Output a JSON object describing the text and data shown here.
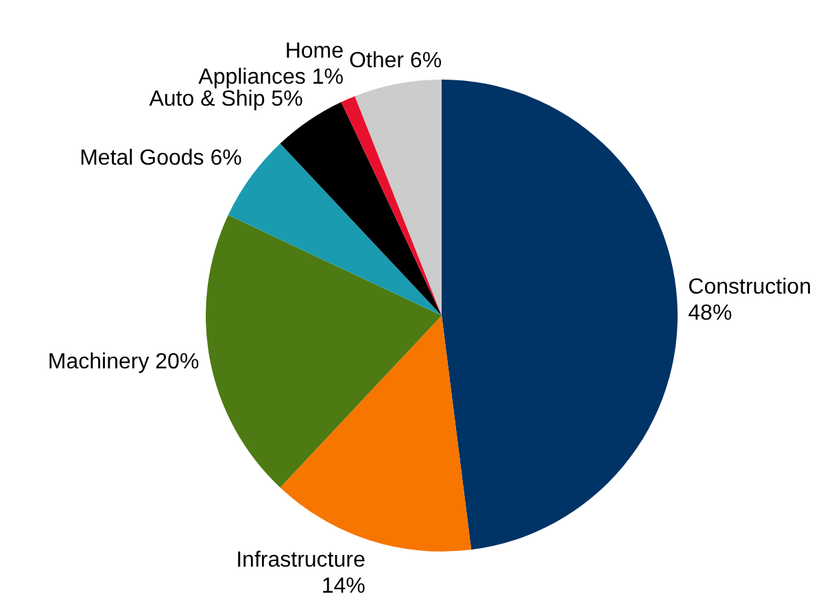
{
  "chart_data": {
    "type": "pie",
    "categories": [
      "Construction",
      "Infrastructure",
      "Machinery",
      "Metal Goods",
      "Auto & Ship",
      "Home Appliances",
      "Other"
    ],
    "values": [
      48,
      14,
      20,
      6,
      5,
      1,
      6
    ],
    "value_labels": [
      "48%",
      "14%",
      "20%",
      "6%",
      "5%",
      "1%",
      "6%"
    ],
    "colors": [
      "#003366",
      "#f77600",
      "#4d7a12",
      "#1a9bb0",
      "#000000",
      "#e8112d",
      "#cccccc"
    ]
  }
}
